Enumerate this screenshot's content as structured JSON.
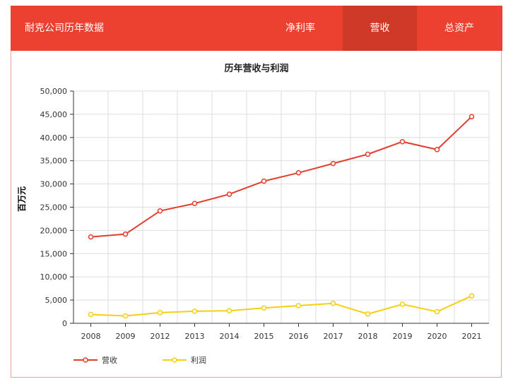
{
  "header": {
    "title": "耐克公司历年数据",
    "tabs": [
      {
        "label": "净利率",
        "active": false
      },
      {
        "label": "营收",
        "active": true
      },
      {
        "label": "总资产",
        "active": false
      }
    ]
  },
  "colors": {
    "header": "#ec4130",
    "active_tab": "#cf3a28",
    "revenue": "#e43c2e",
    "profit": "#f5cf10"
  },
  "chart_data": {
    "type": "line",
    "title": "历年营收与利润",
    "ylabel": "百万元",
    "xlabel": "",
    "categories": [
      "2008",
      "2009",
      "2012",
      "2013",
      "2014",
      "2015",
      "2016",
      "2017",
      "2018",
      "2019",
      "2020",
      "2021"
    ],
    "ylim": [
      0,
      50000
    ],
    "yticks": [
      "0",
      "5,000",
      "10,000",
      "15,000",
      "20,000",
      "25,000",
      "30,000",
      "35,000",
      "40,000",
      "45,000",
      "50,000"
    ],
    "grid": true,
    "legend": "bottom-left",
    "series": [
      {
        "name": "营收",
        "values": [
          18600,
          19200,
          24200,
          25800,
          27800,
          30600,
          32400,
          34400,
          36400,
          39100,
          37400,
          44500
        ]
      },
      {
        "name": "利润",
        "values": [
          1900,
          1600,
          2300,
          2600,
          2700,
          3300,
          3800,
          4300,
          2000,
          4100,
          2500,
          5900
        ]
      }
    ]
  }
}
